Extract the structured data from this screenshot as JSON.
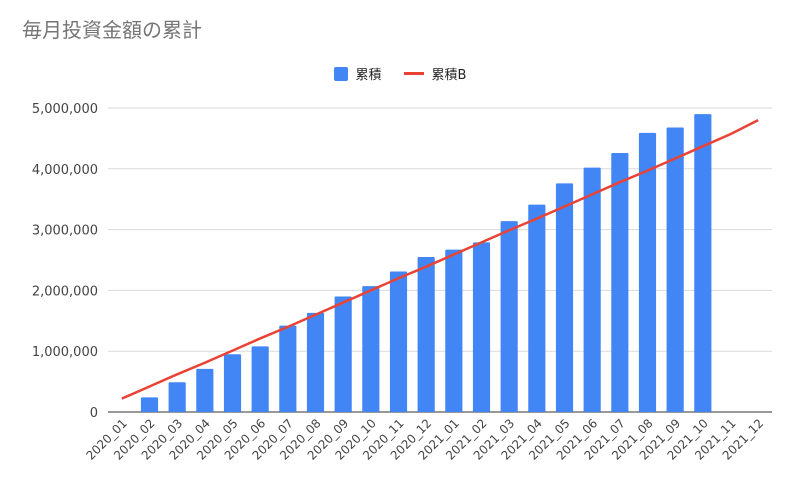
{
  "chart_data": {
    "type": "bar",
    "title": "毎月投資金額の累計",
    "categories": [
      "2020_01",
      "2020_02",
      "2020_03",
      "2020_04",
      "2020_05",
      "2020_06",
      "2020_07",
      "2020_08",
      "2020_09",
      "2020_10",
      "2020_11",
      "2020_12",
      "2021_01",
      "2021_02",
      "2021_03",
      "2021_04",
      "2021_05",
      "2021_06",
      "2021_07",
      "2021_08",
      "2021_09",
      "2021_10",
      "2021_11",
      "2021_12"
    ],
    "series": [
      {
        "name": "累積",
        "type": "bar",
        "color": "#4285f4",
        "values": [
          0,
          240000,
          490000,
          710000,
          950000,
          1080000,
          1420000,
          1630000,
          1900000,
          2070000,
          2310000,
          2550000,
          2670000,
          2790000,
          3140000,
          3410000,
          3760000,
          4020000,
          4260000,
          4590000,
          4680000,
          4900000,
          null,
          null
        ]
      },
      {
        "name": "累積B",
        "type": "line",
        "color": "#ea4335",
        "values": [
          220000,
          420000,
          620000,
          810000,
          1010000,
          1210000,
          1400000,
          1600000,
          1800000,
          2000000,
          2200000,
          2390000,
          2590000,
          2790000,
          2990000,
          3180000,
          3380000,
          3580000,
          3780000,
          3970000,
          4170000,
          4370000,
          4570000,
          4800000
        ]
      }
    ],
    "y_ticks": [
      "0",
      "1,000,000",
      "2,000,000",
      "3,000,000",
      "4,000,000",
      "5,000,000"
    ],
    "y_tick_values": [
      0,
      1000000,
      2000000,
      3000000,
      4000000,
      5000000
    ],
    "ylim": [
      0,
      5000000
    ],
    "xlabel": "",
    "ylabel": "",
    "grid": true,
    "legend_position": "top-center"
  }
}
